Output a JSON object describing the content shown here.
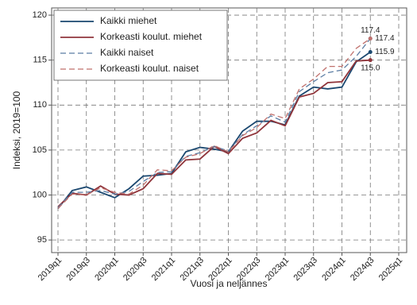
{
  "chart_data": {
    "type": "line",
    "y_label": "Indeksi, 2019=100",
    "x_label": "Vuosi ja neljännes",
    "categories": [
      "2019q1",
      null,
      "2019q3",
      null,
      "2020q1",
      null,
      "2020q3",
      null,
      "2021q1",
      null,
      "2021q3",
      null,
      "2022q1",
      null,
      "2022q3",
      null,
      "2023q1",
      null,
      "2023q3",
      null,
      "2024q1",
      null,
      "2024q3",
      null,
      "2025q1"
    ],
    "ylim": [
      93.6,
      120.8
    ],
    "yticks": [
      95,
      100,
      105,
      110,
      115,
      120
    ],
    "grid": true,
    "legend": "upper left",
    "series": [
      {
        "name": "Kaikki miehet",
        "color": "#1a476f",
        "dash": false,
        "values": [
          98.5,
          100.5,
          100.9,
          100.3,
          99.7,
          100.7,
          102.1,
          102.2,
          102.4,
          104.8,
          105.3,
          105.1,
          104.8,
          107.1,
          108.2,
          108.2,
          107.8,
          111.0,
          112.0,
          111.8,
          112.0,
          114.8,
          115.9,
          null,
          null
        ],
        "value_labels": [
          null,
          null,
          null,
          null,
          null,
          null,
          null,
          null,
          null,
          null,
          null,
          null,
          null,
          null,
          null,
          null,
          null,
          null,
          null,
          null,
          null,
          null,
          "115.9",
          null,
          null
        ]
      },
      {
        "name": "Korkeasti koulut. miehet",
        "color": "#90353b",
        "dash": false,
        "values": [
          98.7,
          100.2,
          100.0,
          101.0,
          100.1,
          100.0,
          100.7,
          102.4,
          102.3,
          103.9,
          104.0,
          105.4,
          104.6,
          106.3,
          106.9,
          108.3,
          107.7,
          110.9,
          111.3,
          112.5,
          112.6,
          114.9,
          115.0,
          null,
          null
        ],
        "value_labels": [
          null,
          null,
          null,
          null,
          null,
          null,
          null,
          null,
          null,
          null,
          null,
          null,
          null,
          null,
          null,
          null,
          null,
          null,
          null,
          null,
          null,
          null,
          "115.0",
          null,
          null
        ]
      },
      {
        "name": "Kaikki naiset",
        "color": "#5a7ca3",
        "dash": true,
        "values": [
          98.6,
          100.3,
          100.3,
          100.5,
          100.1,
          100.4,
          101.5,
          102.5,
          102.6,
          104.3,
          104.7,
          105.4,
          104.9,
          106.7,
          107.7,
          108.8,
          108.1,
          111.5,
          112.6,
          113.6,
          113.9,
          115.4,
          117.4,
          null,
          null
        ],
        "value_labels": [
          null,
          null,
          null,
          null,
          null,
          null,
          null,
          null,
          null,
          null,
          null,
          null,
          null,
          null,
          null,
          null,
          null,
          null,
          null,
          null,
          null,
          null,
          "117.4",
          null,
          null
        ]
      },
      {
        "name": "Korkeasti koulut. naiset",
        "color": "#c0706c",
        "dash": true,
        "values": [
          98.5,
          100.1,
          100.0,
          100.8,
          100.3,
          100.1,
          101.1,
          102.8,
          102.7,
          104.2,
          104.6,
          105.5,
          104.8,
          106.6,
          107.5,
          109.0,
          108.5,
          111.8,
          112.9,
          114.3,
          114.3,
          116.3,
          117.4,
          null,
          null
        ],
        "value_labels": [
          null,
          null,
          null,
          null,
          null,
          null,
          null,
          null,
          null,
          null,
          null,
          null,
          null,
          null,
          null,
          null,
          null,
          null,
          null,
          null,
          null,
          null,
          "117.4",
          null,
          null
        ]
      }
    ]
  }
}
